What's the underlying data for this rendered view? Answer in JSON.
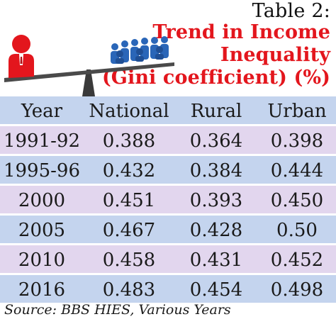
{
  "table_label": "Table 2:",
  "title_lines": [
    "Trend in Income",
    "Inequality",
    "(Gini coefficient) (%)"
  ],
  "source": "Source: BBS HIES, Various Years",
  "colors": {
    "title": "#e3161d",
    "header_band": "#c4d4ee",
    "row_lilac": "#e2d6ee",
    "row_blue": "#c4d4ee"
  },
  "illustration": {
    "icons": [
      "single-person-icon",
      "crowd-icon",
      "seesaw-icon"
    ]
  },
  "chart_data": {
    "type": "table",
    "title": "Trend in Income Inequality (Gini coefficient) (%)",
    "columns": [
      "Year",
      "National",
      "Rural",
      "Urban"
    ],
    "rows": [
      [
        "1991-92",
        "0.388",
        "0.364",
        "0.398"
      ],
      [
        "1995-96",
        "0.432",
        "0.384",
        "0.444"
      ],
      [
        "2000",
        "0.451",
        "0.393",
        "0.450"
      ],
      [
        "2005",
        "0.467",
        "0.428",
        "0.50"
      ],
      [
        "2010",
        "0.458",
        "0.431",
        "0.452"
      ],
      [
        "2016",
        "0.483",
        "0.454",
        "0.498"
      ]
    ]
  }
}
